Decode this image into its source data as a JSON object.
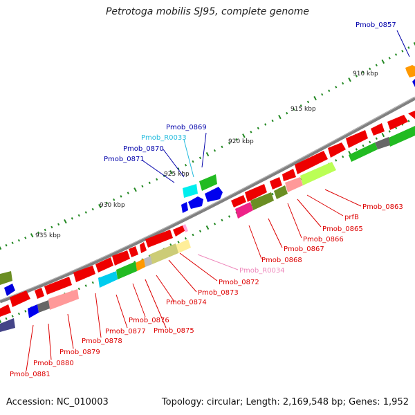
{
  "title": "Petrotoga mobilis SJ95, complete genome",
  "footer": {
    "accession": "Accession: NC_010003",
    "summary": "Topology: circular; Length: 2,169,548 bp; Genes: 1,952"
  },
  "colors": {
    "backbone": "#8a8a8a",
    "label_red": "#dd0000",
    "label_blue": "#0000aa",
    "label_cyan": "#22bbdd",
    "label_pink": "#ee88bb",
    "tick_green": "#228822"
  },
  "scale_labels": [
    "910 kbp",
    "915 kbp",
    "920 kbp",
    "925 kbp",
    "930 kbp",
    "935 kbp"
  ],
  "gene_labels": [
    {
      "id": "pmob-0857",
      "text": "Pmob_0857",
      "color": "label_blue"
    },
    {
      "id": "pmob-0869",
      "text": "Pmob_0869",
      "color": "label_blue"
    },
    {
      "id": "pmob-r0033",
      "text": "Pmob_R0033",
      "color": "label_cyan"
    },
    {
      "id": "pmob-0870",
      "text": "Pmob_0870",
      "color": "label_blue"
    },
    {
      "id": "pmob-0871",
      "text": "Pmob_0871",
      "color": "label_blue"
    },
    {
      "id": "pmob-0863",
      "text": "Pmob_0863",
      "color": "label_red"
    },
    {
      "id": "prfb",
      "text": "prfB",
      "color": "label_red"
    },
    {
      "id": "pmob-0865",
      "text": "Pmob_0865",
      "color": "label_red"
    },
    {
      "id": "pmob-0866",
      "text": "Pmob_0866",
      "color": "label_red"
    },
    {
      "id": "pmob-0867",
      "text": "Pmob_0867",
      "color": "label_red"
    },
    {
      "id": "pmob-0868",
      "text": "Pmob_0868",
      "color": "label_red"
    },
    {
      "id": "pmob-r0034",
      "text": "Pmob_R0034",
      "color": "label_pink"
    },
    {
      "id": "pmob-0872",
      "text": "Pmob_0872",
      "color": "label_red"
    },
    {
      "id": "pmob-0873",
      "text": "Pmob_0873",
      "color": "label_red"
    },
    {
      "id": "pmob-0874",
      "text": "Pmob_0874",
      "color": "label_red"
    },
    {
      "id": "pmob-0875",
      "text": "Pmob_0875",
      "color": "label_red"
    },
    {
      "id": "pmob-0876",
      "text": "Pmob_0876",
      "color": "label_red"
    },
    {
      "id": "pmob-0877",
      "text": "Pmob_0877",
      "color": "label_red"
    },
    {
      "id": "pmob-0878",
      "text": "Pmob_0878",
      "color": "label_red"
    },
    {
      "id": "pmob-0879",
      "text": "Pmob_0879",
      "color": "label_red"
    },
    {
      "id": "pmob-0880",
      "text": "Pmob_0880",
      "color": "label_red"
    },
    {
      "id": "pmob-0881",
      "text": "Pmob_0881",
      "color": "label_red"
    }
  ]
}
